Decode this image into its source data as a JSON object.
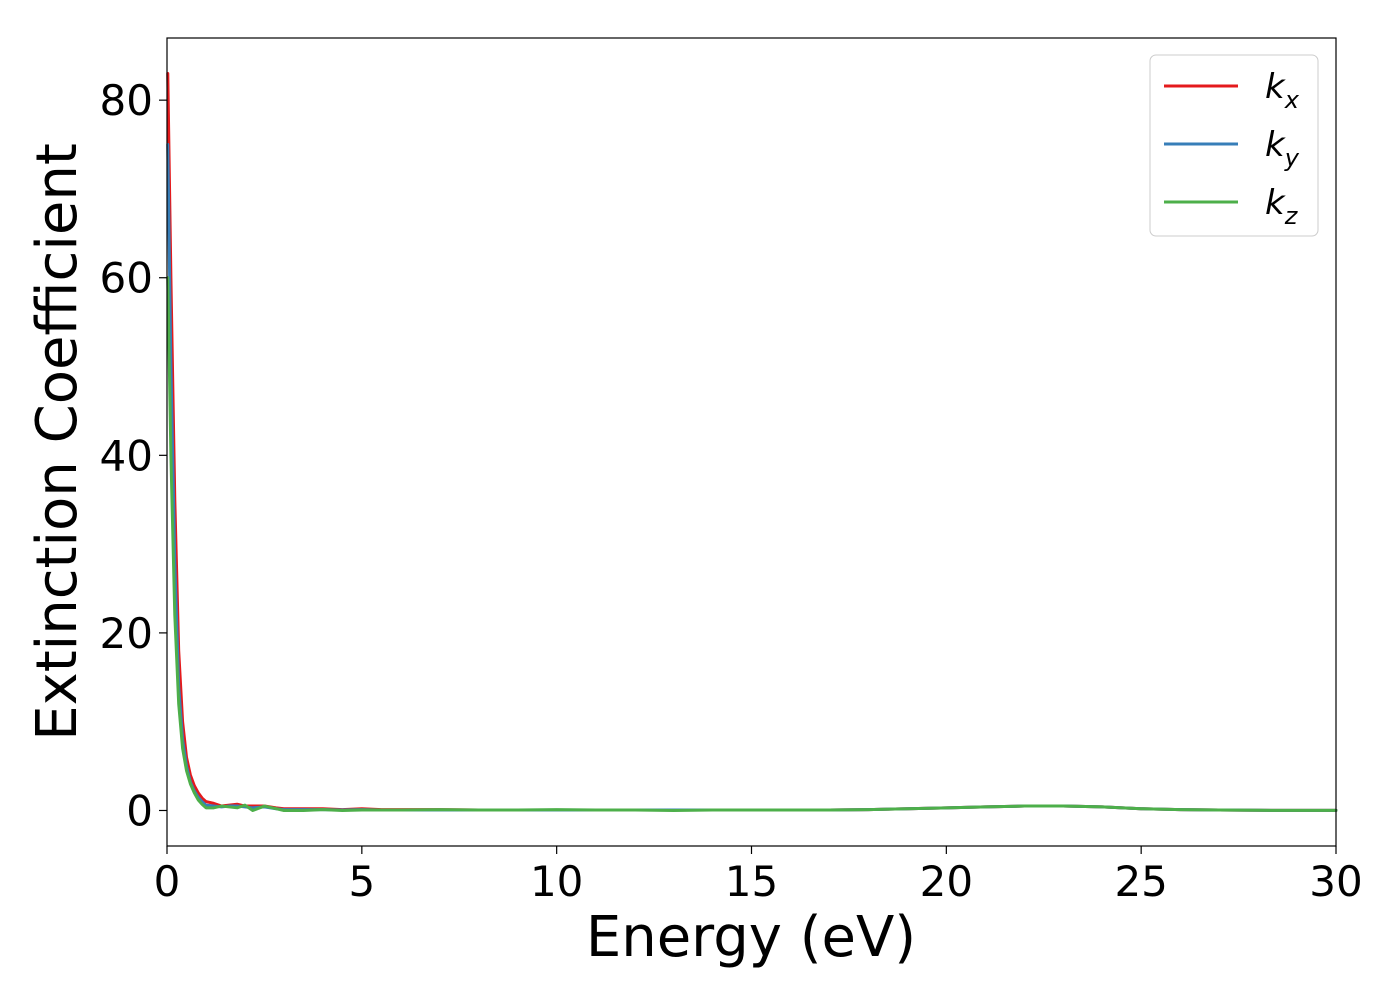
{
  "chart_data": {
    "type": "line",
    "title": "",
    "xlabel": "Energy (eV)",
    "ylabel": "Extinction Coefficient",
    "xlim": [
      0,
      30
    ],
    "ylim": [
      -4,
      87
    ],
    "xticks": [
      0,
      5,
      10,
      15,
      20,
      25,
      30
    ],
    "xtick_labels": [
      "0",
      "5",
      "10",
      "15",
      "20",
      "25",
      "30"
    ],
    "yticks": [
      0,
      20,
      40,
      60,
      80
    ],
    "ytick_labels": [
      "0",
      "20",
      "40",
      "60",
      "80"
    ],
    "grid": false,
    "legend_position": "top-right",
    "series": [
      {
        "name": "k_x",
        "label_base": "k",
        "label_sub": "x",
        "color": "#e41a1c",
        "x": [
          0.02,
          0.1,
          0.2,
          0.3,
          0.4,
          0.5,
          0.6,
          0.7,
          0.8,
          0.9,
          1.0,
          1.2,
          1.4,
          1.6,
          1.8,
          2.0,
          2.2,
          2.5,
          2.8,
          3.0,
          3.5,
          4.0,
          4.5,
          5.0,
          5.5,
          6.0,
          7.0,
          8.0,
          9.0,
          10.0,
          11.0,
          12.0,
          13.0,
          14.0,
          15.0,
          16.0,
          17.0,
          18.0,
          19.0,
          20.0,
          21.0,
          22.0,
          23.0,
          24.0,
          25.0,
          26.0,
          27.0,
          28.0,
          29.0,
          30.0
        ],
        "values": [
          83.0,
          60.0,
          35.0,
          18.0,
          10.0,
          6.0,
          4.0,
          2.8,
          2.0,
          1.4,
          1.0,
          0.8,
          0.5,
          0.6,
          0.7,
          0.5,
          0.5,
          0.5,
          0.3,
          0.2,
          0.2,
          0.2,
          0.1,
          0.2,
          0.1,
          0.1,
          0.1,
          0.05,
          0.05,
          0.05,
          0.05,
          0.05,
          0.05,
          0.05,
          0.05,
          0.05,
          0.05,
          0.1,
          0.2,
          0.3,
          0.4,
          0.5,
          0.5,
          0.4,
          0.2,
          0.1,
          0.05,
          0.02,
          0.01,
          0.01
        ]
      },
      {
        "name": "k_y",
        "label_base": "k",
        "label_sub": "y",
        "color": "#377eb8",
        "x": [
          0.02,
          0.1,
          0.2,
          0.3,
          0.4,
          0.5,
          0.6,
          0.7,
          0.8,
          0.9,
          1.0,
          1.2,
          1.4,
          1.6,
          1.8,
          2.0,
          2.2,
          2.5,
          2.8,
          3.0,
          3.5,
          4.0,
          4.5,
          5.0,
          5.5,
          6.0,
          7.0,
          8.0,
          9.0,
          10.0,
          11.0,
          12.0,
          13.0,
          14.0,
          15.0,
          16.0,
          17.0,
          18.0,
          19.0,
          20.0,
          21.0,
          22.0,
          23.0,
          24.0,
          25.0,
          26.0,
          27.0,
          28.0,
          29.0,
          30.0
        ],
        "values": [
          75.0,
          50.0,
          28.0,
          14.0,
          8.0,
          5.0,
          3.2,
          2.2,
          1.5,
          1.0,
          0.6,
          0.5,
          0.4,
          0.5,
          0.5,
          0.4,
          0.3,
          0.4,
          0.2,
          0.1,
          0.1,
          0.1,
          0.05,
          0.1,
          0.05,
          0.05,
          0.05,
          0.05,
          0.05,
          0.05,
          0.05,
          0.05,
          0.05,
          0.05,
          0.05,
          0.05,
          0.05,
          0.1,
          0.2,
          0.3,
          0.4,
          0.5,
          0.5,
          0.4,
          0.2,
          0.1,
          0.05,
          0.02,
          0.01,
          0.01
        ]
      },
      {
        "name": "k_z",
        "label_base": "k",
        "label_sub": "z",
        "color": "#4daf4a",
        "x": [
          0.02,
          0.1,
          0.2,
          0.3,
          0.4,
          0.5,
          0.6,
          0.7,
          0.8,
          0.9,
          1.0,
          1.2,
          1.4,
          1.6,
          1.8,
          2.0,
          2.2,
          2.5,
          2.8,
          3.0,
          3.5,
          4.0,
          4.5,
          5.0,
          5.5,
          6.0,
          7.0,
          8.0,
          9.0,
          10.0,
          11.0,
          12.0,
          13.0,
          14.0,
          15.0,
          16.0,
          17.0,
          18.0,
          19.0,
          20.0,
          21.0,
          22.0,
          23.0,
          24.0,
          25.0,
          26.0,
          27.0,
          28.0,
          29.0,
          30.0
        ],
        "values": [
          60.0,
          40.0,
          22.0,
          12.0,
          7.0,
          4.5,
          3.0,
          2.0,
          1.2,
          0.7,
          0.3,
          0.3,
          0.5,
          0.4,
          0.3,
          0.6,
          0.0,
          0.5,
          0.2,
          0.0,
          0.0,
          0.1,
          0.0,
          0.05,
          0.05,
          0.05,
          0.1,
          0.05,
          0.05,
          0.1,
          0.05,
          0.05,
          0.0,
          0.05,
          0.05,
          0.05,
          0.05,
          0.1,
          0.2,
          0.3,
          0.4,
          0.5,
          0.5,
          0.4,
          0.2,
          0.1,
          0.05,
          0.02,
          0.01,
          0.01
        ]
      }
    ]
  }
}
